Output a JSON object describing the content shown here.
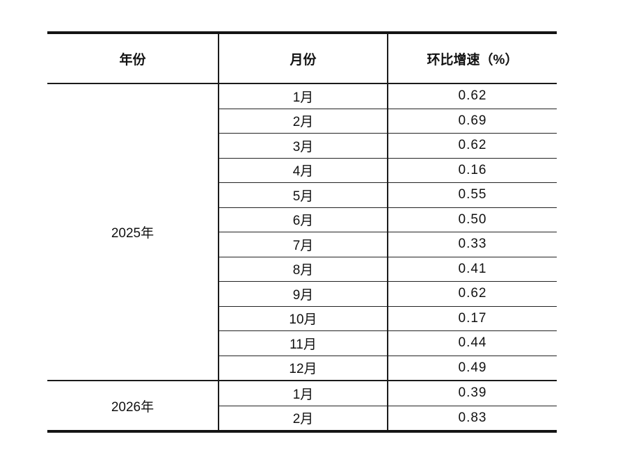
{
  "table": {
    "columns": [
      "年份",
      "月份",
      "环比增速（%）"
    ],
    "sections": [
      {
        "year": "2025年",
        "rows": [
          {
            "month": "1月",
            "value": "0.62"
          },
          {
            "month": "2月",
            "value": "0.69"
          },
          {
            "month": "3月",
            "value": "0.62"
          },
          {
            "month": "4月",
            "value": "0.16"
          },
          {
            "month": "5月",
            "value": "0.55"
          },
          {
            "month": "6月",
            "value": "0.50"
          },
          {
            "month": "7月",
            "value": "0.33"
          },
          {
            "month": "8月",
            "value": "0.41"
          },
          {
            "month": "9月",
            "value": "0.62"
          },
          {
            "month": "10月",
            "value": "0.17"
          },
          {
            "month": "11月",
            "value": "0.44"
          },
          {
            "month": "12月",
            "value": "0.49"
          }
        ]
      },
      {
        "year": "2026年",
        "rows": [
          {
            "month": "1月",
            "value": "0.39"
          },
          {
            "month": "2月",
            "value": "0.83"
          }
        ]
      }
    ]
  },
  "colors": {
    "background": "#ffffff",
    "border": "#1a1a1a",
    "text": "#111111"
  }
}
